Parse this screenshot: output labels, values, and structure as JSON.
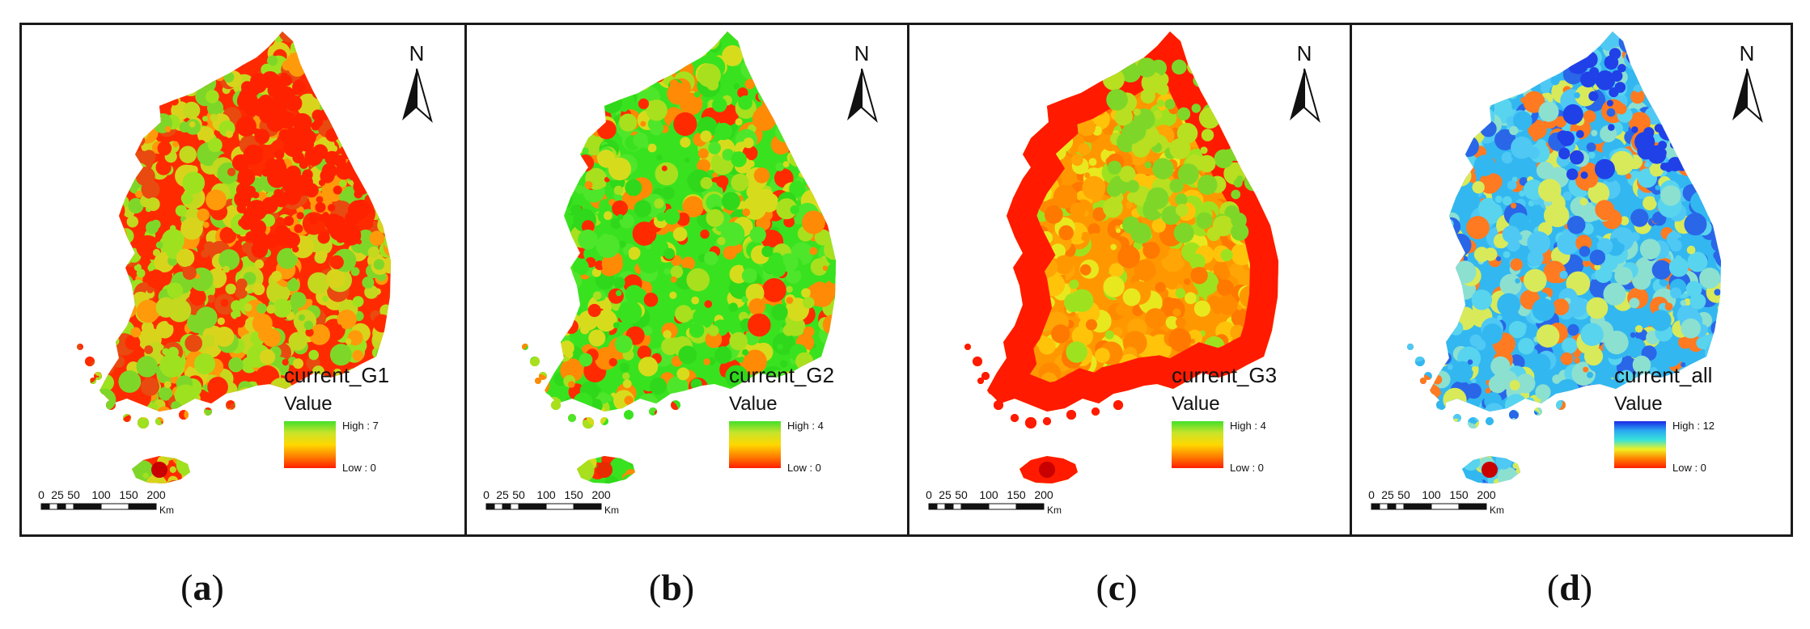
{
  "panels": [
    {
      "letter": "a",
      "layer_name": "current_G1",
      "legend_title": "Value",
      "high_label": "High : 7",
      "low_label": "Low : 0",
      "ramp": [
        "#44e02a",
        "#c8e42a",
        "#ffd800",
        "#ff8000",
        "#ff1e00"
      ],
      "map_palette": [
        "#ff2a00",
        "#e84a10",
        "#c4d81e",
        "#9ee21f",
        "#d8d41c",
        "#ff9a0a",
        "#7ed728"
      ],
      "scale_ticks": [
        "0",
        "25",
        "50",
        "100",
        "150",
        "200"
      ],
      "scale_unit": "Km",
      "north_label": "N"
    },
    {
      "letter": "b",
      "layer_name": "current_G2",
      "legend_title": "Value",
      "high_label": "High : 4",
      "low_label": "Low : 0",
      "ramp": [
        "#44e02a",
        "#c8e42a",
        "#ffd800",
        "#ff8000",
        "#ff1e00"
      ],
      "map_palette": [
        "#39e21f",
        "#4ee62a",
        "#a8e01e",
        "#ff2a00",
        "#ff8a05",
        "#2fd81a",
        "#d6dc1c"
      ],
      "scale_ticks": [
        "0",
        "25",
        "50",
        "100",
        "150",
        "200"
      ],
      "scale_unit": "Km",
      "north_label": "N"
    },
    {
      "letter": "c",
      "layer_name": "current_G3",
      "legend_title": "Value",
      "high_label": "High : 4",
      "low_label": "Low : 0",
      "ramp": [
        "#44e02a",
        "#c8e42a",
        "#ffd800",
        "#ff8000",
        "#ff1e00"
      ],
      "map_palette": [
        "#ff9800",
        "#ffa505",
        "#ffc40a",
        "#e8e81e",
        "#ff8a00",
        "#9ee21f",
        "#ff7800"
      ],
      "scale_ticks": [
        "0",
        "25",
        "50",
        "100",
        "150",
        "200"
      ],
      "scale_unit": "Km",
      "north_label": "N"
    },
    {
      "letter": "d",
      "layer_name": "current_all",
      "legend_title": "Value",
      "high_label": "High : 12",
      "low_label": "Low : 0",
      "ramp": [
        "#1a28e6",
        "#2aa8f0",
        "#38e2d8",
        "#f0f020",
        "#ff8000",
        "#ff1e00"
      ],
      "map_palette": [
        "#33b7f0",
        "#4fc8f4",
        "#8ce0d0",
        "#d8ea5a",
        "#2a66e8",
        "#ff7a20",
        "#58d4ee"
      ],
      "scale_ticks": [
        "0",
        "25",
        "50",
        "100",
        "150",
        "200"
      ],
      "scale_unit": "Km",
      "north_label": "N"
    }
  ]
}
